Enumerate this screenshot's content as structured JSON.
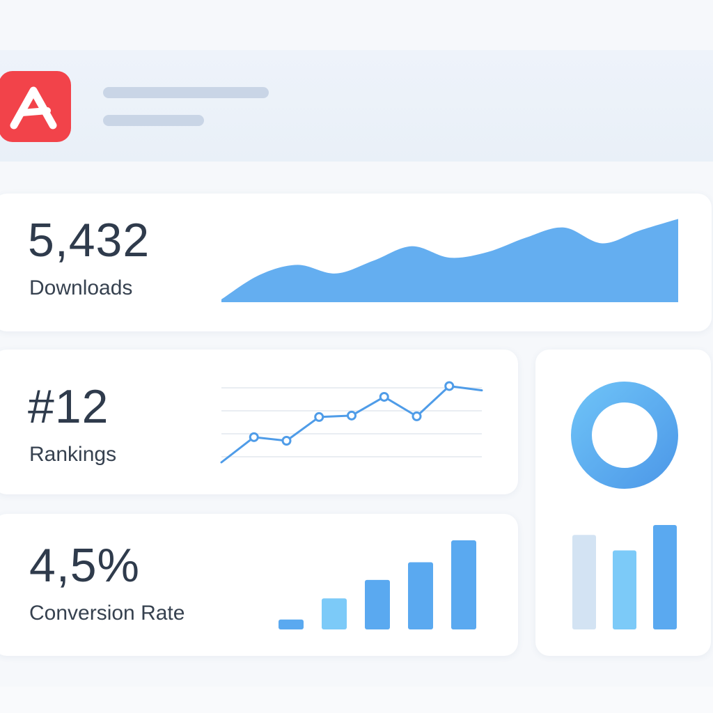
{
  "header": {
    "app_icon": "letter-a-app-icon",
    "app_icon_color": "#f2434a"
  },
  "metrics": {
    "downloads": {
      "value": "5,432",
      "label": "Downloads"
    },
    "rankings": {
      "value": "#12",
      "label": "Rankings"
    },
    "conversion": {
      "value": "4,5%",
      "label": "Conversion Rate"
    }
  },
  "chart_data": [
    {
      "type": "area",
      "x": [
        0,
        1,
        2,
        3,
        4,
        5,
        6,
        7,
        8,
        9,
        10,
        11,
        12
      ],
      "values": [
        4,
        38,
        52,
        40,
        58,
        78,
        62,
        70,
        90,
        104,
        82,
        100,
        116
      ],
      "ylim": [
        0,
        130
      ],
      "color": "#64aef0"
    },
    {
      "type": "line",
      "values": [
        0,
        35,
        30,
        63,
        65,
        91,
        64,
        106,
        100
      ],
      "markers": [
        false,
        true,
        true,
        true,
        true,
        true,
        true,
        true,
        false
      ],
      "ylim": [
        0,
        120
      ],
      "grid": true,
      "color": "#4f9ce8"
    },
    {
      "type": "bar",
      "values": [
        14,
        44,
        70,
        95,
        126
      ],
      "ylim": [
        0,
        130
      ],
      "colors": [
        "#5aa9f0",
        "#7ccaf8",
        "#5aa9f0",
        "#5aa9f0",
        "#5aa9f0"
      ]
    },
    {
      "type": "pie",
      "values": [
        100
      ],
      "donut": true,
      "color": "#5aaef0"
    },
    {
      "type": "bar",
      "values": [
        134,
        112,
        148
      ],
      "ylim": [
        0,
        150
      ],
      "colors": [
        "#d3e3f3",
        "#7ccaf8",
        "#5aa9f0"
      ]
    }
  ]
}
